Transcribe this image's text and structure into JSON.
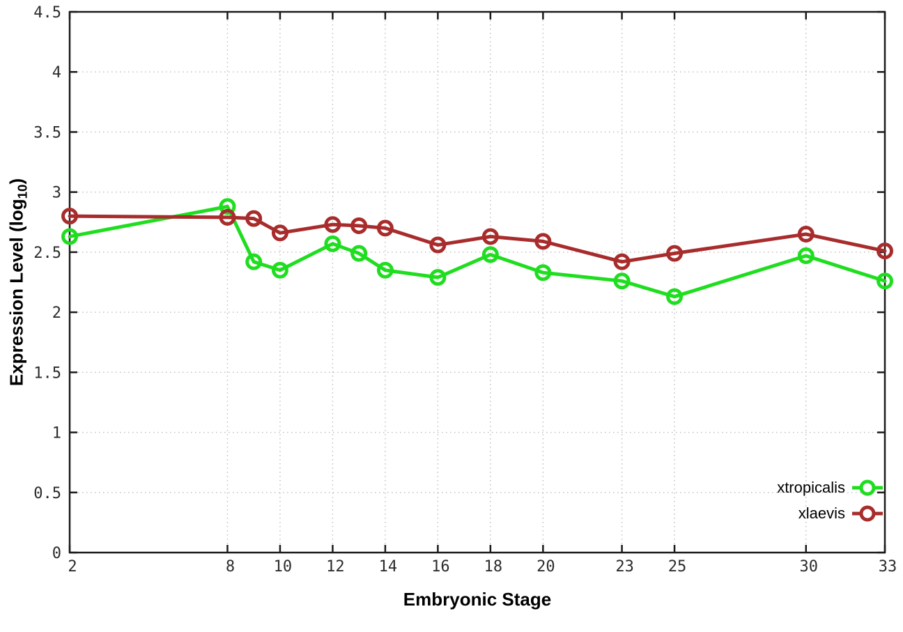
{
  "chart_data": {
    "type": "line",
    "title": "",
    "xlabel": "Embryonic Stage",
    "ylabel": {
      "prefix": "Expression Level (log",
      "sub": "10",
      "suffix": ")"
    },
    "xlim": [
      2,
      33
    ],
    "ylim": [
      0,
      4.5
    ],
    "grid": true,
    "legend_position": "bottom-right",
    "x_tick_labels": [
      {
        "v": 2,
        "label": "2"
      },
      {
        "v": 8,
        "label": "8"
      },
      {
        "v": 10,
        "label": "10"
      },
      {
        "v": 12,
        "label": "12"
      },
      {
        "v": 14,
        "label": "14"
      },
      {
        "v": 16,
        "label": "16"
      },
      {
        "v": 18,
        "label": "18"
      },
      {
        "v": 20,
        "label": "20"
      },
      {
        "v": 23,
        "label": "23"
      },
      {
        "v": 25,
        "label": "25"
      },
      {
        "v": 30,
        "label": "30"
      },
      {
        "v": 33,
        "label": "33"
      }
    ],
    "y_tick_labels": [
      {
        "v": 0,
        "label": "0"
      },
      {
        "v": 0.5,
        "label": "0.5"
      },
      {
        "v": 1,
        "label": "1"
      },
      {
        "v": 1.5,
        "label": "1.5"
      },
      {
        "v": 2,
        "label": "2"
      },
      {
        "v": 2.5,
        "label": "2.5"
      },
      {
        "v": 3,
        "label": "3"
      },
      {
        "v": 3.5,
        "label": "3.5"
      },
      {
        "v": 4,
        "label": "4"
      },
      {
        "v": 4.5,
        "label": "4.5"
      }
    ],
    "x": [
      2,
      8,
      9,
      10,
      12,
      13,
      14,
      16,
      18,
      20,
      23,
      25,
      30,
      33
    ],
    "series": [
      {
        "name": "xtropicalis",
        "color": "#1fdd1f",
        "values": [
          2.63,
          2.88,
          2.42,
          2.35,
          2.57,
          2.49,
          2.35,
          2.29,
          2.48,
          2.33,
          2.26,
          2.13,
          2.47,
          2.26
        ]
      },
      {
        "name": "xlaevis",
        "color": "#a82c2c",
        "values": [
          2.8,
          2.79,
          2.78,
          2.66,
          2.73,
          2.72,
          2.7,
          2.56,
          2.63,
          2.59,
          2.42,
          2.49,
          2.65,
          2.51
        ]
      }
    ],
    "style": {
      "border_color": "#1a1a1a",
      "grid_color": "#bcbcbc",
      "tick_label_color": "#2b2b2b",
      "background": "#ffffff"
    }
  }
}
